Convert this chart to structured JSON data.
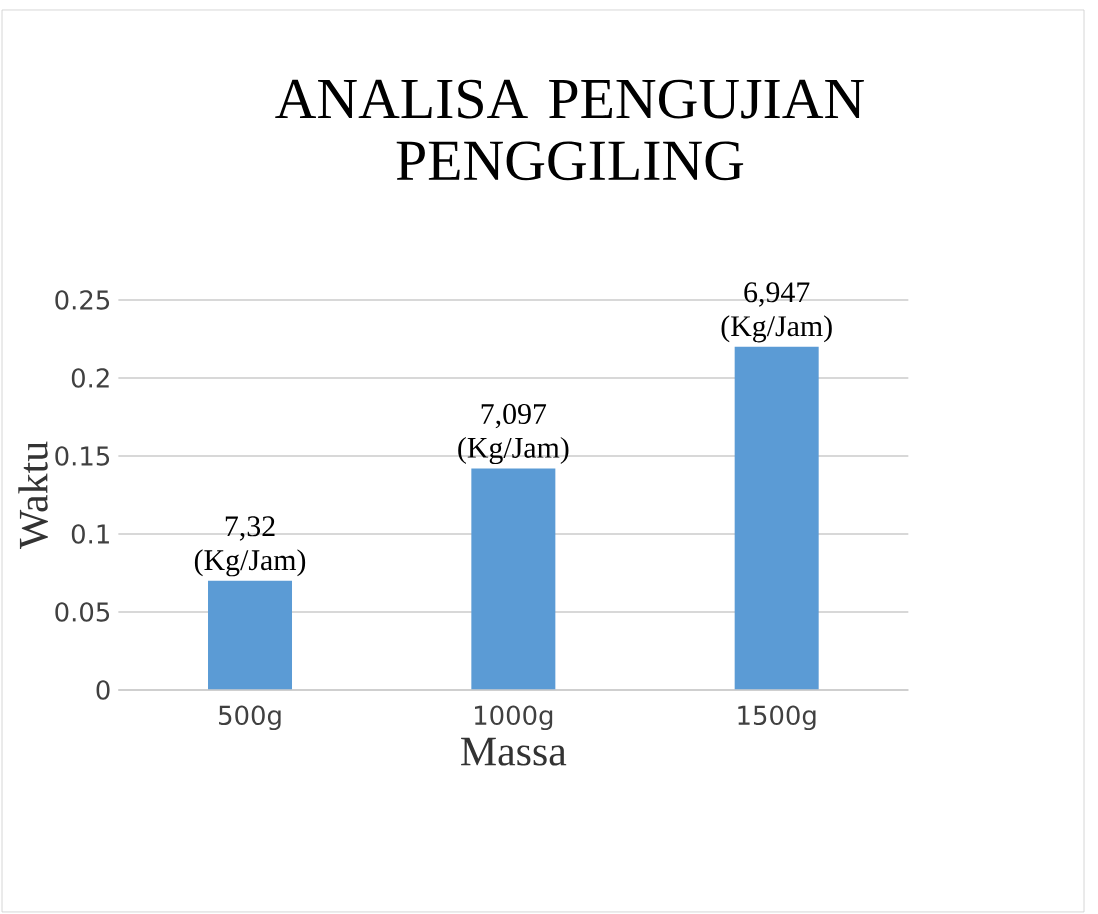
{
  "chart_data": {
    "type": "bar",
    "title": "ANALISA PENGUJIAN PENGGILING",
    "xlabel": "Massa",
    "ylabel": "Waktu",
    "categories": [
      "500g",
      "1000g",
      "1500g"
    ],
    "values": [
      0.07,
      0.142,
      0.22
    ],
    "color": "#5b9bd5",
    "ylim": [
      0,
      0.25
    ],
    "yticks": [
      0,
      0.05,
      0.1,
      0.15,
      0.2,
      0.25
    ],
    "grid": "y",
    "annotations": [
      {
        "text": "7,32 (Kg/Jam)",
        "x": "500g",
        "y": 0.07
      },
      {
        "text": "7,097 (Kg/Jam)",
        "x": "1000g",
        "y": 0.142
      },
      {
        "text": "6,947 (Kg/Jam)",
        "x": "1500g",
        "y": 0.22
      }
    ]
  }
}
